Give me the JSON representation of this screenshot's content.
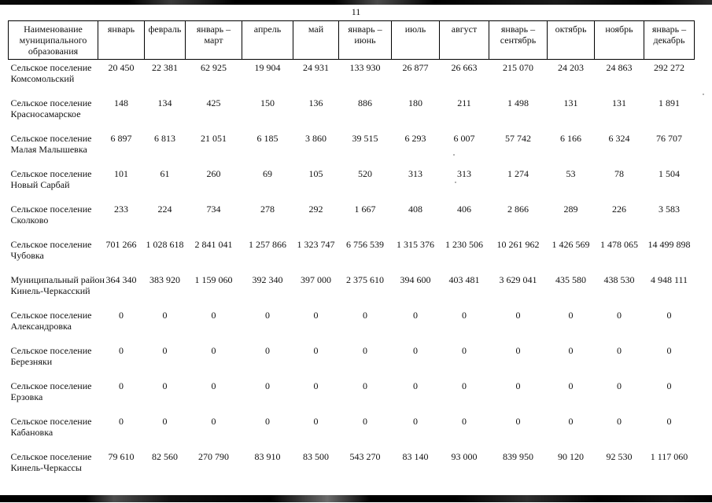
{
  "page": {
    "number": "11"
  },
  "table": {
    "columns": [
      "Наименование муниципального образования",
      "январь",
      "февраль",
      "январь – март",
      "апрель",
      "май",
      "январь – июнь",
      "июль",
      "август",
      "январь – сентябрь",
      "октябрь",
      "ноябрь",
      "январь – декабрь"
    ],
    "rows": [
      {
        "name1": "Сельское поселение",
        "name2": "Комсомольский",
        "values": [
          "20 450",
          "22 381",
          "62 925",
          "19 904",
          "24 931",
          "133 930",
          "26 877",
          "26 663",
          "215 070",
          "24 203",
          "24 863",
          "292 272"
        ]
      },
      {
        "name1": "Сельское поселение",
        "name2": "Красносамарское",
        "values": [
          "148",
          "134",
          "425",
          "150",
          "136",
          "886",
          "180",
          "211",
          "1 498",
          "131",
          "131",
          "1 891"
        ]
      },
      {
        "name1": "Сельское поселение",
        "name2": "Малая Малышевка",
        "values": [
          "6 897",
          "6 813",
          "21 051",
          "6 185",
          "3 860",
          "39 515",
          "6 293",
          "6 007",
          "57 742",
          "6 166",
          "6 324",
          "76 707"
        ]
      },
      {
        "name1": "Сельское поселение",
        "name2": "Новый Сарбай",
        "values": [
          "101",
          "61",
          "260",
          "69",
          "105",
          "520",
          "313",
          "313",
          "1 274",
          "53",
          "78",
          "1 504"
        ]
      },
      {
        "name1": "Сельское поселение",
        "name2": "Сколково",
        "values": [
          "233",
          "224",
          "734",
          "278",
          "292",
          "1 667",
          "408",
          "406",
          "2 866",
          "289",
          "226",
          "3 583"
        ]
      },
      {
        "name1": "Сельское поселение",
        "name2": "Чубовка",
        "values": [
          "701 266",
          "1 028 618",
          "2 841 041",
          "1 257 866",
          "1 323 747",
          "6 756 539",
          "1 315 376",
          "1 230 506",
          "10 261 962",
          "1 426 569",
          "1 478 065",
          "14 499 898"
        ]
      },
      {
        "name1": "Муниципальный район",
        "name2": "Кинель-Черкасский",
        "values": [
          "364 340",
          "383 920",
          "1 159 060",
          "392 340",
          "397 000",
          "2 375 610",
          "394 600",
          "403 481",
          "3 629 041",
          "435 580",
          "438 530",
          "4 948 111"
        ]
      },
      {
        "name1": "Сельское поселение",
        "name2": "Александровка",
        "values": [
          "0",
          "0",
          "0",
          "0",
          "0",
          "0",
          "0",
          "0",
          "0",
          "0",
          "0",
          "0"
        ]
      },
      {
        "name1": "Сельское поселение",
        "name2": "Березняки",
        "values": [
          "0",
          "0",
          "0",
          "0",
          "0",
          "0",
          "0",
          "0",
          "0",
          "0",
          "0",
          "0"
        ]
      },
      {
        "name1": "Сельское поселение",
        "name2": "Ерзовка",
        "values": [
          "0",
          "0",
          "0",
          "0",
          "0",
          "0",
          "0",
          "0",
          "0",
          "0",
          "0",
          "0"
        ]
      },
      {
        "name1": "Сельское поселение",
        "name2": "Кабановка",
        "values": [
          "0",
          "0",
          "0",
          "0",
          "0",
          "0",
          "0",
          "0",
          "0",
          "0",
          "0",
          "0"
        ]
      },
      {
        "name1": "Сельское поселение",
        "name2": "Кинель-Черкассы",
        "values": [
          "79 610",
          "82 560",
          "270 790",
          "83 910",
          "83 500",
          "543 270",
          "83 140",
          "93 000",
          "839 950",
          "90 120",
          "92 530",
          "1 117 060"
        ]
      }
    ]
  }
}
